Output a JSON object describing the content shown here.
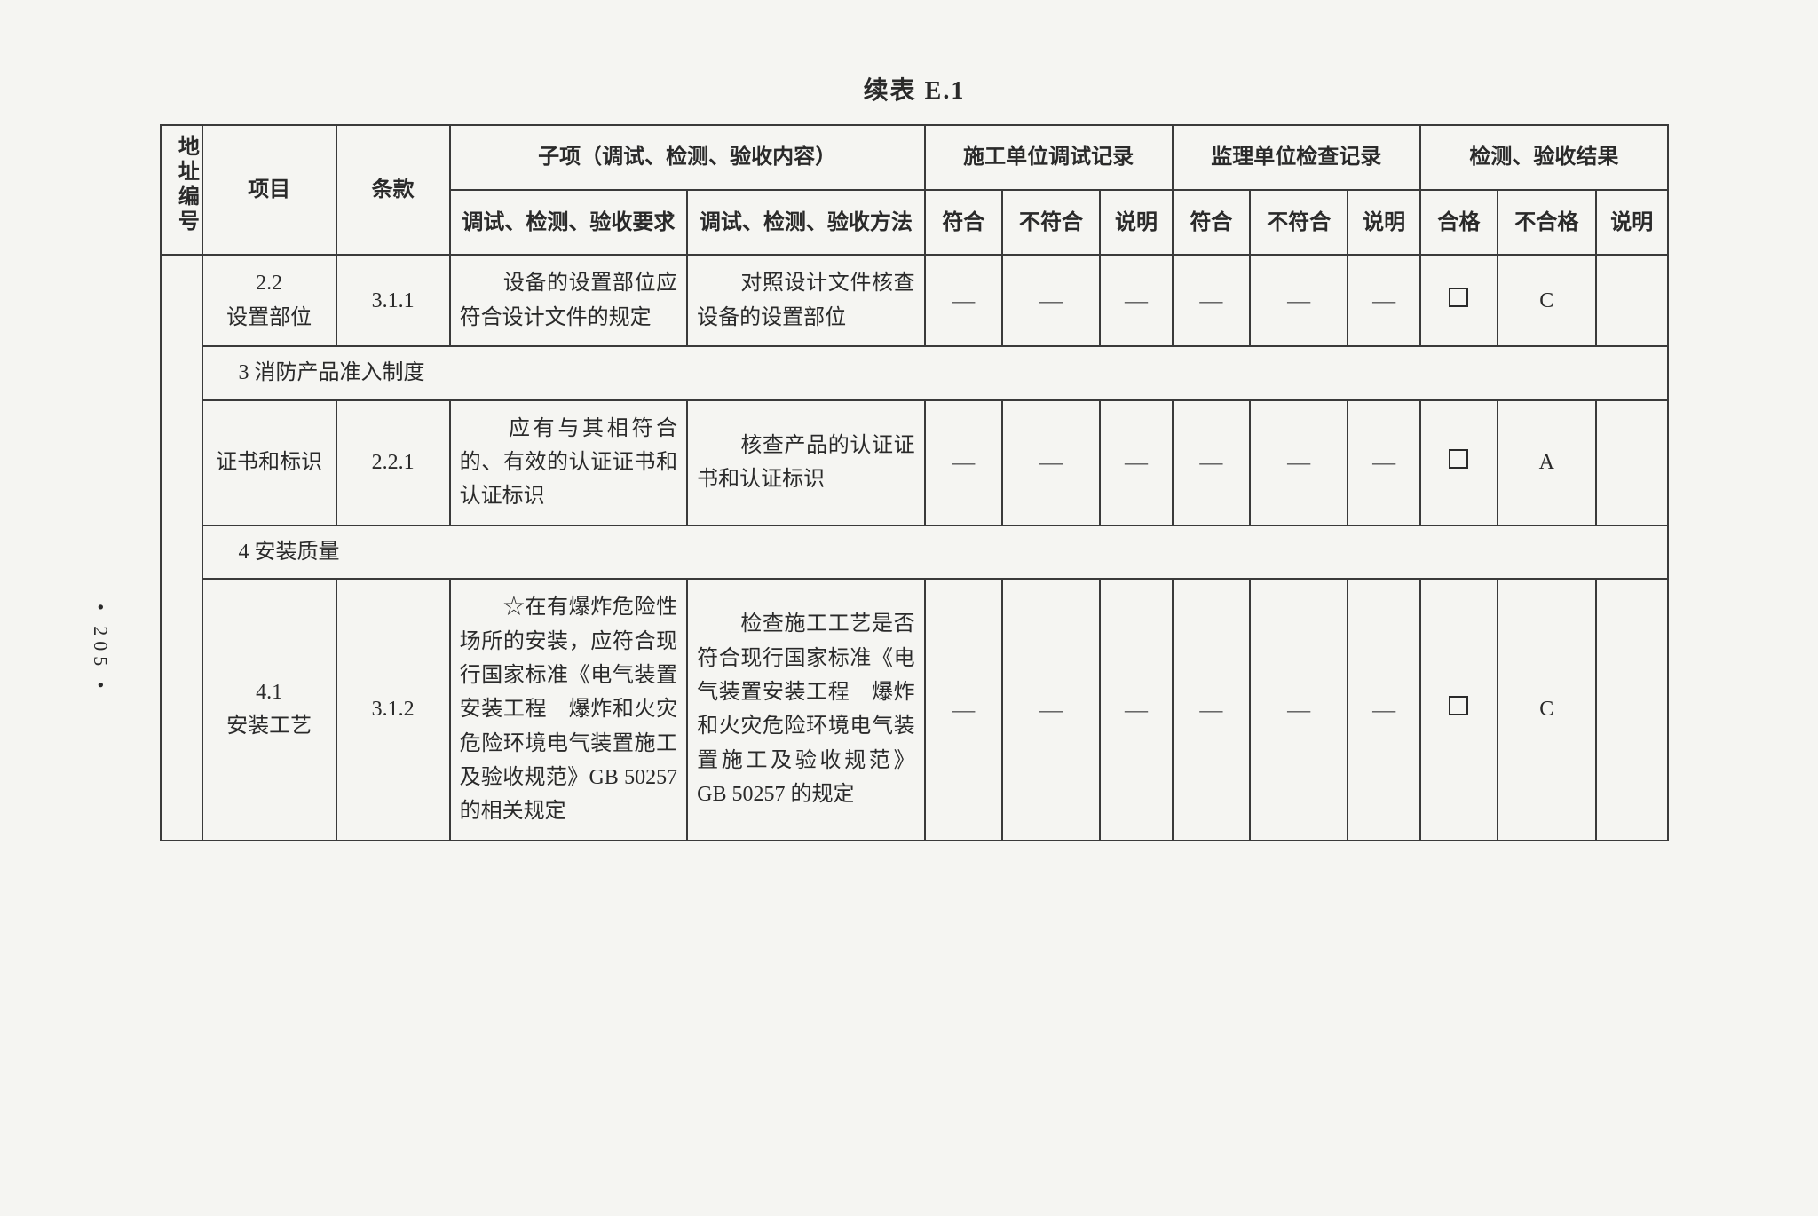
{
  "title": "续表 E.1",
  "pageNumber": "• 205 •",
  "headers": {
    "addr": "地址编号",
    "item": "项目",
    "clause": "条款",
    "subitem": "子项（调试、检测、验收内容）",
    "construction": "施工单位调试记录",
    "supervision": "监理单位检查记录",
    "result": "检测、验收结果",
    "req": "调试、检测、验收要求",
    "method": "调试、检测、验收方法",
    "conform": "符合",
    "notConform": "不符合",
    "desc": "说明",
    "pass": "合格",
    "fail": "不合格"
  },
  "rows": [
    {
      "item": "2.2\n设置部位",
      "clause": "3.1.1",
      "req": "　　设备的设置部位应符合设计文件的规定",
      "method": "　　对照设计文件核查设备的设置部位",
      "grade": "C"
    }
  ],
  "section1": "3 消防产品准入制度",
  "rows2": [
    {
      "item": "证书和标识",
      "clause": "2.2.1",
      "req": "　　应有与其相符合的、有效的认证证书和认证标识",
      "method": "　　核查产品的认证证书和认证标识",
      "grade": "A"
    }
  ],
  "section2": "4 安装质量",
  "rows3": [
    {
      "item": "4.1\n安装工艺",
      "clause": "3.1.2",
      "req": "　　☆在有爆炸危险性场所的安装，应符合现行国家标准《电气装置安装工程　爆炸和火灾危险环境电气装置施工及验收规范》GB 50257 的相关规定",
      "method": "　　检查施工工艺是否符合现行国家标准《电气装置安装工程　爆炸和火灾危险环境电气装置施工及验收规范》GB 50257 的规定",
      "grade": "C"
    }
  ],
  "dash": "—"
}
